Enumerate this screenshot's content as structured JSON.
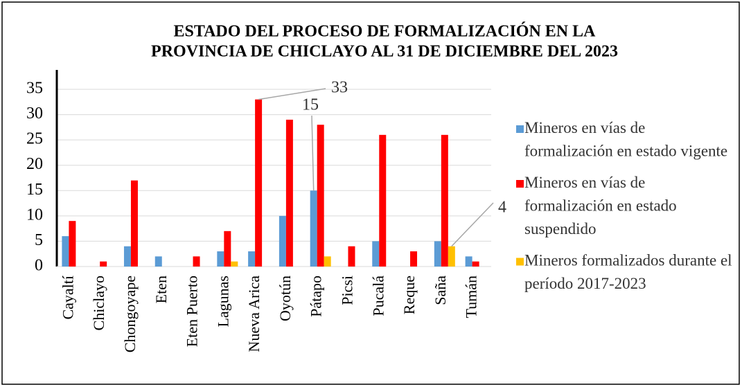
{
  "chart_data": {
    "type": "bar",
    "title": [
      "ESTADO DEL PROCESO DE FORMALIZACIÓN EN LA",
      "PROVINCIA DE CHICLAYO AL 31 DE DICIEMBRE DEL 2023"
    ],
    "categories": [
      "Cayaltí",
      "Chiclayo",
      "Chongoyape",
      "Eten",
      "Eten Puerto",
      "Lagunas",
      "Nueva Arica",
      "Oyotún",
      "Pátapo",
      "Picsi",
      "Pucalá",
      "Reque",
      "Saña",
      "Tumán"
    ],
    "series": [
      {
        "name": "Mineros en vías de formalización en estado vigente",
        "color": "#5b9bd5",
        "values": [
          6,
          0,
          4,
          2,
          0,
          3,
          3,
          10,
          15,
          0,
          5,
          0,
          5,
          2
        ]
      },
      {
        "name": "Mineros en vías de formalización en estado suspendido",
        "color": "#ff0000",
        "values": [
          9,
          1,
          17,
          0,
          2,
          7,
          33,
          29,
          28,
          4,
          26,
          3,
          26,
          1
        ]
      },
      {
        "name": "Mineros formalizados durante el período 2017-2023",
        "color": "#ffc000",
        "values": [
          0,
          0,
          0,
          0,
          0,
          1,
          0,
          0,
          2,
          0,
          0,
          0,
          4,
          0
        ]
      }
    ],
    "ylim": [
      0,
      35
    ],
    "yticks": [
      0,
      5,
      10,
      15,
      20,
      25,
      30,
      35
    ],
    "grid": true,
    "legend": "right"
  }
}
